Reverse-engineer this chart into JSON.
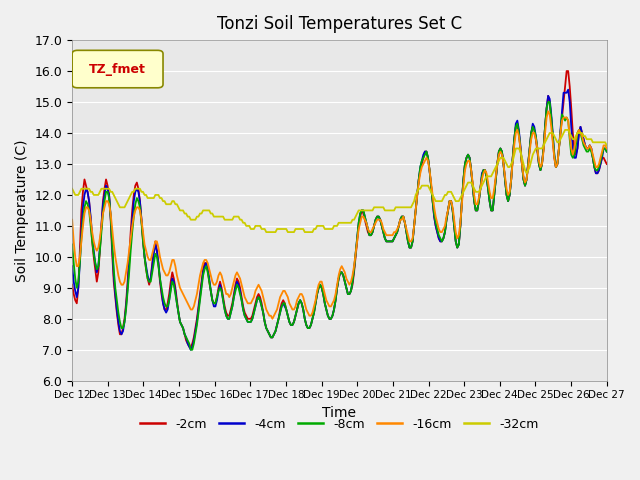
{
  "title": "Tonzi Soil Temperatures Set C",
  "xlabel": "Time",
  "ylabel": "Soil Temperature (C)",
  "ylim": [
    6.0,
    17.0
  ],
  "yticks": [
    6.0,
    7.0,
    8.0,
    9.0,
    10.0,
    11.0,
    12.0,
    13.0,
    14.0,
    15.0,
    16.0,
    17.0
  ],
  "legend_label": "TZ_fmet",
  "series_labels": [
    "-2cm",
    "-4cm",
    "-8cm",
    "-16cm",
    "-32cm"
  ],
  "series_colors": [
    "#cc0000",
    "#0000cc",
    "#00aa00",
    "#ff8800",
    "#cccc00"
  ],
  "x_tick_labels": [
    "Dec 12",
    "Dec 13",
    "Dec 14",
    "Dec 15",
    "Dec 16",
    "Dec 17",
    "Dec 18",
    "Dec 19",
    "Dec 20",
    "Dec 21",
    "Dec 22",
    "Dec 23",
    "Dec 24",
    "Dec 25",
    "Dec 26",
    "Dec 27"
  ],
  "t_2cm": [
    9.1,
    8.8,
    8.6,
    8.5,
    9.0,
    10.2,
    11.5,
    12.1,
    12.5,
    12.3,
    12.1,
    11.8,
    11.2,
    10.5,
    10.0,
    9.6,
    9.2,
    9.5,
    10.2,
    11.0,
    11.8,
    12.2,
    12.5,
    12.3,
    12.0,
    11.2,
    10.1,
    9.2,
    8.7,
    8.2,
    7.8,
    7.5,
    7.5,
    7.7,
    8.0,
    8.5,
    9.2,
    10.0,
    10.8,
    11.5,
    12.0,
    12.3,
    12.4,
    12.2,
    11.8,
    11.2,
    10.5,
    10.0,
    9.6,
    9.3,
    9.1,
    9.3,
    9.8,
    10.2,
    10.5,
    10.2,
    9.8,
    9.2,
    8.8,
    8.5,
    8.3,
    8.3,
    8.5,
    8.8,
    9.2,
    9.5,
    9.3,
    9.0,
    8.6,
    8.2,
    7.9,
    7.8,
    7.7,
    7.5,
    7.3,
    7.2,
    7.1,
    7.1,
    7.2,
    7.4,
    7.7,
    8.0,
    8.4,
    8.8,
    9.2,
    9.6,
    9.8,
    9.8,
    9.6,
    9.2,
    8.9,
    8.6,
    8.5,
    8.5,
    8.7,
    9.0,
    9.2,
    9.0,
    8.7,
    8.4,
    8.2,
    8.1,
    8.1,
    8.3,
    8.5,
    8.8,
    9.1,
    9.3,
    9.2,
    9.0,
    8.7,
    8.4,
    8.2,
    8.1,
    8.0,
    8.0,
    8.0,
    8.1,
    8.3,
    8.5,
    8.7,
    8.8,
    8.7,
    8.5,
    8.2,
    7.9,
    7.7,
    7.6,
    7.5,
    7.4,
    7.4,
    7.5,
    7.6,
    7.8,
    8.0,
    8.3,
    8.5,
    8.6,
    8.5,
    8.3,
    8.1,
    7.9,
    7.8,
    7.8,
    7.9,
    8.1,
    8.3,
    8.5,
    8.6,
    8.5,
    8.3,
    8.0,
    7.8,
    7.7,
    7.7,
    7.8,
    8.0,
    8.2,
    8.5,
    8.8,
    9.0,
    9.1,
    9.0,
    8.8,
    8.5,
    8.3,
    8.1,
    8.0,
    8.0,
    8.1,
    8.3,
    8.6,
    9.0,
    9.3,
    9.5,
    9.5,
    9.4,
    9.2,
    9.0,
    8.8,
    8.8,
    8.9,
    9.1,
    9.5,
    10.0,
    10.5,
    11.0,
    11.3,
    11.5,
    11.4,
    11.2,
    11.0,
    10.8,
    10.7,
    10.7,
    10.8,
    11.0,
    11.2,
    11.3,
    11.3,
    11.2,
    11.0,
    10.8,
    10.6,
    10.5,
    10.5,
    10.5,
    10.5,
    10.5,
    10.6,
    10.7,
    10.8,
    11.0,
    11.2,
    11.3,
    11.3,
    11.1,
    10.8,
    10.5,
    10.3,
    10.3,
    10.5,
    11.0,
    11.5,
    12.0,
    12.5,
    12.8,
    13.0,
    13.2,
    13.4,
    13.4,
    13.2,
    12.8,
    12.3,
    11.8,
    11.3,
    11.0,
    10.8,
    10.6,
    10.5,
    10.5,
    10.6,
    10.8,
    11.2,
    11.5,
    11.8,
    11.8,
    11.5,
    11.0,
    10.5,
    10.3,
    10.4,
    11.0,
    11.8,
    12.5,
    13.0,
    13.2,
    13.3,
    13.2,
    12.8,
    12.3,
    11.8,
    11.5,
    11.5,
    11.8,
    12.2,
    12.6,
    12.8,
    12.8,
    12.6,
    12.2,
    11.8,
    11.5,
    11.5,
    12.0,
    12.5,
    13.0,
    13.4,
    13.5,
    13.4,
    13.0,
    12.5,
    12.0,
    11.8,
    12.0,
    12.5,
    13.2,
    13.8,
    14.2,
    14.3,
    14.0,
    13.5,
    13.0,
    12.5,
    12.3,
    12.5,
    13.0,
    13.5,
    14.0,
    14.2,
    14.1,
    13.8,
    13.4,
    13.0,
    12.8,
    13.0,
    13.5,
    14.2,
    14.8,
    15.2,
    15.0,
    14.5,
    13.8,
    13.2,
    12.9,
    13.0,
    13.5,
    14.0,
    14.5,
    15.0,
    15.5,
    16.0,
    16.0,
    15.5,
    14.8,
    14.0,
    13.5,
    13.3,
    13.5,
    14.0,
    14.2,
    14.0,
    13.8,
    13.6,
    13.5,
    13.5,
    13.6,
    13.5,
    13.2,
    12.9,
    12.7,
    12.7,
    12.8,
    13.0,
    13.2,
    13.2,
    13.1,
    13.0
  ],
  "t_4cm": [
    9.7,
    9.2,
    8.9,
    8.7,
    9.0,
    9.8,
    10.8,
    11.6,
    12.0,
    12.2,
    12.1,
    11.8,
    11.3,
    10.7,
    10.2,
    9.8,
    9.5,
    9.7,
    10.3,
    11.0,
    11.7,
    12.0,
    12.3,
    12.2,
    12.0,
    11.3,
    10.3,
    9.4,
    8.8,
    8.3,
    7.9,
    7.6,
    7.5,
    7.6,
    7.9,
    8.4,
    9.0,
    9.8,
    10.5,
    11.2,
    11.8,
    12.1,
    12.2,
    12.1,
    11.8,
    11.2,
    10.6,
    10.0,
    9.7,
    9.4,
    9.2,
    9.3,
    9.7,
    10.1,
    10.4,
    10.2,
    9.8,
    9.3,
    8.9,
    8.5,
    8.3,
    8.2,
    8.3,
    8.6,
    9.0,
    9.3,
    9.2,
    8.9,
    8.5,
    8.2,
    7.9,
    7.8,
    7.7,
    7.5,
    7.4,
    7.2,
    7.1,
    7.0,
    7.1,
    7.3,
    7.6,
    7.9,
    8.3,
    8.7,
    9.1,
    9.5,
    9.7,
    9.8,
    9.6,
    9.3,
    8.9,
    8.6,
    8.4,
    8.4,
    8.6,
    8.9,
    9.1,
    8.9,
    8.6,
    8.3,
    8.1,
    8.0,
    8.0,
    8.2,
    8.4,
    8.7,
    9.0,
    9.2,
    9.1,
    8.9,
    8.6,
    8.3,
    8.1,
    8.0,
    7.9,
    7.9,
    7.9,
    8.0,
    8.2,
    8.4,
    8.6,
    8.7,
    8.6,
    8.4,
    8.2,
    7.9,
    7.7,
    7.6,
    7.5,
    7.4,
    7.4,
    7.5,
    7.6,
    7.8,
    8.0,
    8.2,
    8.4,
    8.5,
    8.4,
    8.3,
    8.1,
    7.9,
    7.8,
    7.8,
    7.9,
    8.1,
    8.3,
    8.5,
    8.6,
    8.5,
    8.3,
    8.0,
    7.8,
    7.7,
    7.7,
    7.8,
    8.0,
    8.2,
    8.5,
    8.8,
    9.0,
    9.1,
    9.0,
    8.8,
    8.5,
    8.3,
    8.1,
    8.0,
    8.0,
    8.1,
    8.3,
    8.6,
    9.0,
    9.3,
    9.5,
    9.5,
    9.4,
    9.2,
    9.0,
    8.8,
    8.8,
    8.9,
    9.2,
    9.6,
    10.1,
    10.6,
    11.1,
    11.4,
    11.5,
    11.5,
    11.3,
    11.1,
    10.9,
    10.7,
    10.7,
    10.8,
    11.0,
    11.2,
    11.3,
    11.3,
    11.2,
    11.0,
    10.8,
    10.6,
    10.5,
    10.5,
    10.5,
    10.5,
    10.5,
    10.6,
    10.7,
    10.8,
    11.0,
    11.2,
    11.3,
    11.3,
    11.1,
    10.8,
    10.5,
    10.3,
    10.3,
    10.5,
    11.0,
    11.5,
    12.0,
    12.5,
    12.9,
    13.1,
    13.3,
    13.4,
    13.4,
    13.2,
    12.8,
    12.3,
    11.8,
    11.3,
    11.0,
    10.8,
    10.6,
    10.5,
    10.5,
    10.6,
    10.8,
    11.2,
    11.5,
    11.8,
    11.8,
    11.5,
    11.0,
    10.5,
    10.3,
    10.4,
    11.0,
    11.8,
    12.5,
    13.0,
    13.2,
    13.3,
    13.2,
    12.8,
    12.3,
    11.8,
    11.5,
    11.5,
    11.8,
    12.2,
    12.7,
    12.8,
    12.8,
    12.6,
    12.2,
    11.8,
    11.5,
    11.5,
    12.0,
    12.5,
    13.0,
    13.4,
    13.5,
    13.4,
    13.0,
    12.5,
    12.0,
    11.8,
    12.0,
    12.5,
    13.2,
    13.8,
    14.3,
    14.4,
    14.1,
    13.6,
    13.0,
    12.5,
    12.3,
    12.5,
    13.0,
    13.5,
    14.0,
    14.3,
    14.2,
    13.9,
    13.5,
    13.0,
    12.8,
    13.0,
    13.5,
    14.2,
    14.8,
    15.2,
    15.1,
    14.6,
    14.0,
    13.3,
    12.9,
    13.0,
    13.5,
    14.1,
    14.7,
    15.3,
    15.3,
    15.3,
    15.4,
    15.0,
    14.2,
    13.5,
    13.2,
    13.2,
    13.5,
    14.0,
    14.2,
    14.0,
    13.8,
    13.6,
    13.5,
    13.5,
    13.6,
    13.5,
    13.2,
    12.9,
    12.7,
    12.7,
    12.8,
    13.0,
    13.2,
    13.5,
    13.5,
    13.4
  ],
  "t_8cm": [
    10.4,
    9.8,
    9.3,
    9.0,
    9.2,
    9.8,
    10.6,
    11.2,
    11.6,
    11.8,
    11.7,
    11.5,
    11.0,
    10.5,
    10.1,
    9.8,
    9.6,
    9.7,
    10.2,
    10.8,
    11.4,
    11.8,
    12.1,
    12.1,
    11.9,
    11.3,
    10.4,
    9.6,
    9.0,
    8.6,
    8.2,
    7.9,
    7.7,
    7.7,
    7.9,
    8.3,
    8.9,
    9.5,
    10.2,
    10.8,
    11.3,
    11.7,
    11.9,
    11.8,
    11.6,
    11.1,
    10.5,
    10.0,
    9.6,
    9.3,
    9.2,
    9.2,
    9.5,
    9.8,
    10.1,
    10.0,
    9.7,
    9.3,
    9.0,
    8.7,
    8.5,
    8.4,
    8.4,
    8.6,
    8.9,
    9.2,
    9.1,
    8.8,
    8.5,
    8.2,
    7.9,
    7.8,
    7.7,
    7.5,
    7.4,
    7.3,
    7.2,
    7.0,
    7.0,
    7.2,
    7.5,
    7.8,
    8.2,
    8.6,
    9.0,
    9.4,
    9.6,
    9.7,
    9.5,
    9.2,
    8.9,
    8.6,
    8.5,
    8.5,
    8.7,
    8.9,
    9.0,
    8.9,
    8.6,
    8.3,
    8.1,
    8.0,
    8.0,
    8.2,
    8.4,
    8.7,
    8.9,
    9.1,
    9.0,
    8.8,
    8.6,
    8.3,
    8.1,
    8.0,
    7.9,
    7.9,
    7.9,
    8.0,
    8.2,
    8.4,
    8.6,
    8.7,
    8.6,
    8.4,
    8.2,
    7.9,
    7.7,
    7.6,
    7.5,
    7.4,
    7.4,
    7.5,
    7.6,
    7.8,
    8.0,
    8.2,
    8.4,
    8.5,
    8.5,
    8.3,
    8.1,
    7.9,
    7.8,
    7.8,
    7.9,
    8.1,
    8.3,
    8.5,
    8.6,
    8.5,
    8.3,
    8.0,
    7.8,
    7.7,
    7.7,
    7.8,
    8.0,
    8.2,
    8.5,
    8.8,
    9.0,
    9.1,
    9.0,
    8.8,
    8.5,
    8.3,
    8.1,
    8.0,
    8.0,
    8.1,
    8.3,
    8.6,
    9.0,
    9.3,
    9.5,
    9.5,
    9.4,
    9.2,
    9.0,
    8.8,
    8.8,
    8.9,
    9.2,
    9.6,
    10.1,
    10.6,
    11.1,
    11.4,
    11.5,
    11.5,
    11.3,
    11.1,
    10.9,
    10.7,
    10.7,
    10.8,
    11.0,
    11.2,
    11.3,
    11.3,
    11.2,
    11.0,
    10.8,
    10.6,
    10.5,
    10.5,
    10.5,
    10.5,
    10.5,
    10.6,
    10.7,
    10.8,
    11.0,
    11.2,
    11.3,
    11.3,
    11.1,
    10.8,
    10.5,
    10.3,
    10.3,
    10.5,
    11.0,
    11.5,
    12.0,
    12.5,
    12.9,
    13.1,
    13.2,
    13.3,
    13.4,
    13.2,
    12.8,
    12.3,
    11.8,
    11.4,
    11.1,
    10.9,
    10.7,
    10.6,
    10.5,
    10.6,
    10.8,
    11.2,
    11.5,
    11.8,
    11.8,
    11.5,
    11.0,
    10.5,
    10.3,
    10.4,
    11.0,
    11.8,
    12.5,
    13.0,
    13.2,
    13.3,
    13.2,
    12.8,
    12.3,
    11.8,
    11.5,
    11.5,
    11.8,
    12.2,
    12.6,
    12.8,
    12.8,
    12.6,
    12.2,
    11.8,
    11.5,
    11.5,
    12.0,
    12.5,
    13.0,
    13.4,
    13.5,
    13.4,
    13.0,
    12.5,
    12.0,
    11.8,
    12.0,
    12.5,
    13.2,
    13.8,
    14.2,
    14.3,
    14.0,
    13.5,
    13.0,
    12.5,
    12.3,
    12.5,
    13.0,
    13.5,
    14.0,
    14.2,
    14.1,
    13.9,
    13.5,
    13.0,
    12.8,
    13.0,
    13.5,
    14.2,
    14.8,
    15.0,
    15.0,
    14.5,
    13.9,
    13.3,
    12.9,
    13.0,
    13.5,
    14.0,
    14.6,
    14.5,
    14.4,
    14.5,
    14.4,
    13.8,
    13.3,
    13.2,
    13.3,
    13.6,
    14.0,
    14.1,
    14.0,
    13.8,
    13.6,
    13.5,
    13.4,
    13.4,
    13.5,
    13.4,
    13.2,
    12.9,
    12.8,
    12.8,
    12.9,
    13.1,
    13.3,
    13.5,
    13.5,
    13.4
  ],
  "t_16cm": [
    11.2,
    10.5,
    10.0,
    9.7,
    9.7,
    10.0,
    10.5,
    11.0,
    11.4,
    11.6,
    11.6,
    11.5,
    11.2,
    10.8,
    10.5,
    10.3,
    10.2,
    10.3,
    10.6,
    11.0,
    11.4,
    11.6,
    11.8,
    11.8,
    11.7,
    11.4,
    10.9,
    10.4,
    10.0,
    9.7,
    9.4,
    9.2,
    9.1,
    9.1,
    9.2,
    9.5,
    9.8,
    10.2,
    10.6,
    11.0,
    11.3,
    11.5,
    11.6,
    11.6,
    11.5,
    11.2,
    10.8,
    10.4,
    10.2,
    10.0,
    9.9,
    9.9,
    10.1,
    10.3,
    10.5,
    10.5,
    10.3,
    10.0,
    9.8,
    9.6,
    9.5,
    9.4,
    9.4,
    9.5,
    9.7,
    9.9,
    9.9,
    9.7,
    9.4,
    9.2,
    9.0,
    8.9,
    8.8,
    8.7,
    8.6,
    8.5,
    8.4,
    8.3,
    8.3,
    8.4,
    8.6,
    8.8,
    9.1,
    9.4,
    9.6,
    9.8,
    9.9,
    9.9,
    9.8,
    9.6,
    9.4,
    9.2,
    9.1,
    9.1,
    9.2,
    9.4,
    9.5,
    9.4,
    9.2,
    9.0,
    8.8,
    8.8,
    8.7,
    8.8,
    9.0,
    9.2,
    9.4,
    9.5,
    9.4,
    9.3,
    9.1,
    8.9,
    8.7,
    8.6,
    8.5,
    8.5,
    8.5,
    8.6,
    8.7,
    8.9,
    9.0,
    9.1,
    9.0,
    8.9,
    8.7,
    8.5,
    8.3,
    8.2,
    8.1,
    8.1,
    8.0,
    8.1,
    8.2,
    8.3,
    8.5,
    8.7,
    8.8,
    8.9,
    8.9,
    8.8,
    8.7,
    8.5,
    8.4,
    8.3,
    8.3,
    8.4,
    8.6,
    8.7,
    8.8,
    8.8,
    8.7,
    8.5,
    8.3,
    8.2,
    8.1,
    8.1,
    8.2,
    8.4,
    8.6,
    8.9,
    9.1,
    9.2,
    9.2,
    9.0,
    8.8,
    8.6,
    8.5,
    8.4,
    8.4,
    8.5,
    8.6,
    8.8,
    9.1,
    9.4,
    9.6,
    9.7,
    9.6,
    9.5,
    9.3,
    9.2,
    9.1,
    9.2,
    9.4,
    9.7,
    10.1,
    10.5,
    10.9,
    11.1,
    11.3,
    11.3,
    11.2,
    11.1,
    10.9,
    10.8,
    10.8,
    10.9,
    11.0,
    11.1,
    11.2,
    11.2,
    11.2,
    11.1,
    10.9,
    10.8,
    10.7,
    10.7,
    10.7,
    10.7,
    10.7,
    10.8,
    10.8,
    10.9,
    11.0,
    11.2,
    11.2,
    11.3,
    11.1,
    10.9,
    10.7,
    10.5,
    10.5,
    10.6,
    11.0,
    11.5,
    12.0,
    12.4,
    12.7,
    12.9,
    13.0,
    13.1,
    13.2,
    13.1,
    12.8,
    12.4,
    12.0,
    11.6,
    11.3,
    11.1,
    10.9,
    10.8,
    10.8,
    10.9,
    11.0,
    11.3,
    11.5,
    11.8,
    11.8,
    11.6,
    11.2,
    10.8,
    10.6,
    10.7,
    11.1,
    11.7,
    12.3,
    12.8,
    13.0,
    13.1,
    13.1,
    12.8,
    12.4,
    12.0,
    11.7,
    11.7,
    11.9,
    12.2,
    12.5,
    12.7,
    12.8,
    12.7,
    12.4,
    12.1,
    11.9,
    11.9,
    12.2,
    12.6,
    13.0,
    13.3,
    13.4,
    13.3,
    13.0,
    12.6,
    12.2,
    12.0,
    12.1,
    12.5,
    13.1,
    13.6,
    14.0,
    14.1,
    13.9,
    13.5,
    13.0,
    12.6,
    12.4,
    12.5,
    12.9,
    13.4,
    13.8,
    14.0,
    14.0,
    13.8,
    13.5,
    13.1,
    12.9,
    13.0,
    13.4,
    14.0,
    14.5,
    14.7,
    14.6,
    14.2,
    13.7,
    13.2,
    12.9,
    13.0,
    13.5,
    14.0,
    14.4,
    14.5,
    14.5,
    14.5,
    14.4,
    13.9,
    13.5,
    13.3,
    13.5,
    13.8,
    14.0,
    14.1,
    14.0,
    13.9,
    13.7,
    13.6,
    13.5,
    13.5,
    13.6,
    13.5,
    13.3,
    13.1,
    12.9,
    12.9,
    13.0,
    13.2,
    13.4,
    13.6,
    13.6,
    13.5
  ],
  "t_32cm": [
    12.2,
    12.1,
    12.0,
    12.0,
    12.0,
    12.1,
    12.2,
    12.2,
    12.2,
    12.2,
    12.2,
    12.2,
    12.1,
    12.1,
    12.0,
    12.0,
    12.0,
    12.0,
    12.1,
    12.2,
    12.2,
    12.2,
    12.2,
    12.2,
    12.2,
    12.1,
    12.1,
    12.0,
    11.9,
    11.8,
    11.7,
    11.6,
    11.6,
    11.6,
    11.6,
    11.7,
    11.8,
    11.9,
    12.0,
    12.1,
    12.1,
    12.2,
    12.2,
    12.2,
    12.2,
    12.1,
    12.1,
    12.0,
    12.0,
    11.9,
    11.9,
    11.9,
    11.9,
    11.9,
    12.0,
    12.0,
    12.0,
    11.9,
    11.9,
    11.8,
    11.8,
    11.7,
    11.7,
    11.7,
    11.7,
    11.8,
    11.8,
    11.7,
    11.7,
    11.6,
    11.5,
    11.5,
    11.5,
    11.4,
    11.4,
    11.3,
    11.3,
    11.2,
    11.2,
    11.2,
    11.2,
    11.3,
    11.3,
    11.4,
    11.4,
    11.5,
    11.5,
    11.5,
    11.5,
    11.5,
    11.4,
    11.4,
    11.3,
    11.3,
    11.3,
    11.3,
    11.3,
    11.3,
    11.3,
    11.2,
    11.2,
    11.2,
    11.2,
    11.2,
    11.2,
    11.3,
    11.3,
    11.3,
    11.3,
    11.2,
    11.2,
    11.1,
    11.1,
    11.0,
    11.0,
    11.0,
    10.9,
    10.9,
    10.9,
    11.0,
    11.0,
    11.0,
    11.0,
    10.9,
    10.9,
    10.9,
    10.8,
    10.8,
    10.8,
    10.8,
    10.8,
    10.8,
    10.8,
    10.9,
    10.9,
    10.9,
    10.9,
    10.9,
    10.9,
    10.9,
    10.8,
    10.8,
    10.8,
    10.8,
    10.8,
    10.9,
    10.9,
    10.9,
    10.9,
    10.9,
    10.9,
    10.8,
    10.8,
    10.8,
    10.8,
    10.8,
    10.8,
    10.9,
    10.9,
    11.0,
    11.0,
    11.0,
    11.0,
    11.0,
    10.9,
    10.9,
    10.9,
    10.9,
    10.9,
    10.9,
    11.0,
    11.0,
    11.0,
    11.1,
    11.1,
    11.1,
    11.1,
    11.1,
    11.1,
    11.1,
    11.1,
    11.1,
    11.2,
    11.2,
    11.3,
    11.4,
    11.5,
    11.5,
    11.5,
    11.5,
    11.5,
    11.5,
    11.5,
    11.5,
    11.5,
    11.5,
    11.6,
    11.6,
    11.6,
    11.6,
    11.6,
    11.6,
    11.6,
    11.5,
    11.5,
    11.5,
    11.5,
    11.5,
    11.5,
    11.5,
    11.6,
    11.6,
    11.6,
    11.6,
    11.6,
    11.6,
    11.6,
    11.6,
    11.6,
    11.6,
    11.6,
    11.7,
    11.8,
    12.0,
    12.1,
    12.2,
    12.2,
    12.3,
    12.3,
    12.3,
    12.3,
    12.3,
    12.2,
    12.1,
    12.0,
    11.9,
    11.8,
    11.8,
    11.8,
    11.8,
    11.8,
    11.9,
    12.0,
    12.0,
    12.1,
    12.1,
    12.1,
    12.0,
    11.9,
    11.8,
    11.8,
    11.8,
    11.9,
    12.0,
    12.1,
    12.2,
    12.3,
    12.4,
    12.4,
    12.4,
    12.3,
    12.2,
    12.1,
    12.1,
    12.1,
    12.2,
    12.3,
    12.4,
    12.5,
    12.6,
    12.6,
    12.6,
    12.6,
    12.7,
    12.8,
    12.9,
    13.0,
    13.1,
    13.2,
    13.2,
    13.2,
    13.1,
    13.0,
    12.9,
    12.9,
    13.0,
    13.1,
    13.3,
    13.5,
    13.5,
    13.5,
    13.4,
    13.2,
    13.0,
    12.8,
    12.7,
    12.8,
    12.9,
    13.1,
    13.3,
    13.4,
    13.5,
    13.5,
    13.5,
    13.5,
    13.5,
    13.6,
    13.7,
    13.8,
    13.9,
    14.0,
    14.0,
    14.0,
    13.9,
    13.8,
    13.7,
    13.7,
    13.8,
    13.9,
    14.0,
    14.1,
    14.1,
    14.1,
    14.0,
    13.9,
    13.8,
    13.8,
    13.9,
    14.0,
    14.0,
    14.0,
    14.0,
    13.9,
    13.9,
    13.8,
    13.8,
    13.8,
    13.8,
    13.7,
    13.7,
    13.7,
    13.7,
    13.7,
    13.7,
    13.7,
    13.7,
    13.7,
    13.6
  ]
}
